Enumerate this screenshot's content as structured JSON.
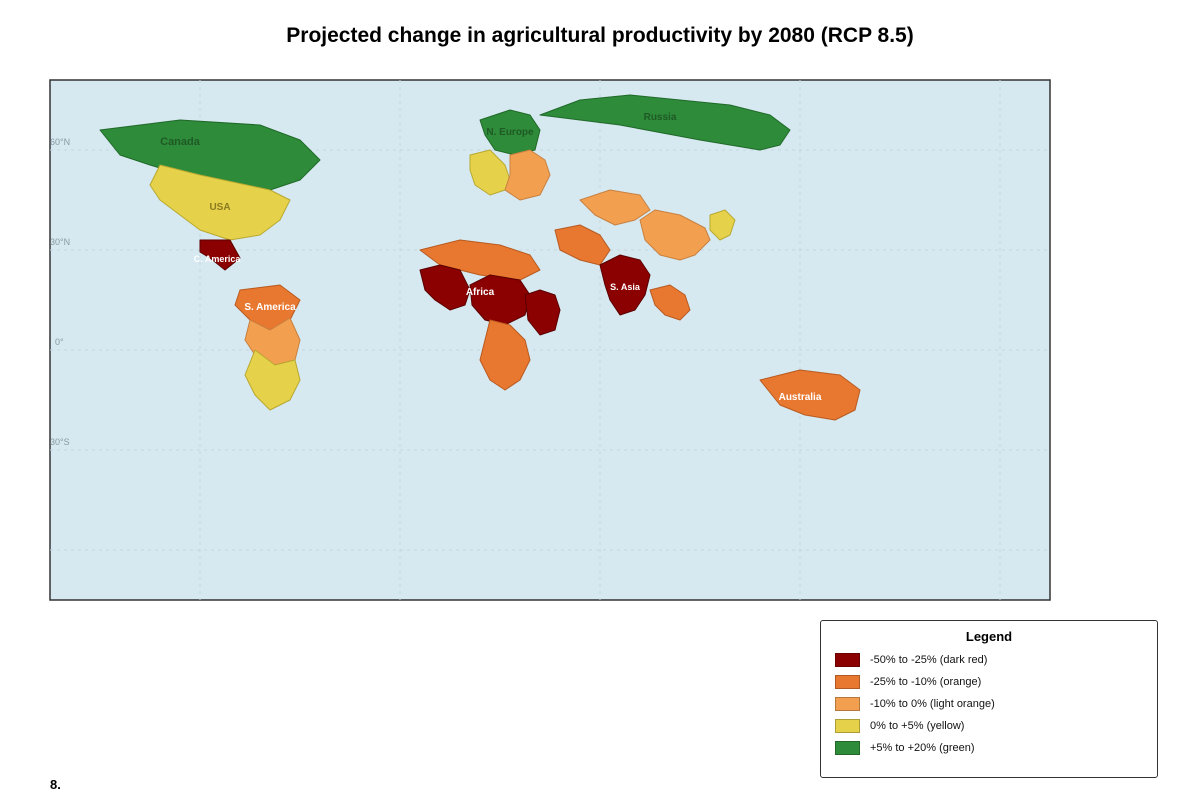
{
  "title": "Projected change in agricultural productivity by 2080 (RCP 8.5)",
  "figure_number": "8.",
  "map": {
    "background_color": "#d6e8f0",
    "lat_labels": [
      "60°N",
      "30°N",
      "0°",
      "30°S"
    ],
    "regions": [
      {
        "key": "canada",
        "label": "Canada",
        "category": "green"
      },
      {
        "key": "russia",
        "label": "Russia",
        "category": "green"
      },
      {
        "key": "n_europe",
        "label": "N. Europe",
        "category": "green"
      },
      {
        "key": "usa",
        "label": "USA",
        "category": "yellow"
      },
      {
        "key": "c_america",
        "label": "C. America",
        "category": "dark_red"
      },
      {
        "key": "s_america",
        "label": "S. America",
        "category": "orange"
      },
      {
        "key": "africa",
        "label": "Africa",
        "category": "dark_red"
      },
      {
        "key": "s_asia",
        "label": "S. Asia",
        "category": "dark_red"
      },
      {
        "key": "australia",
        "label": "Australia",
        "category": "orange"
      }
    ]
  },
  "legend": {
    "title": "Legend",
    "items": [
      {
        "label": "-50% to -25% (dark red)",
        "color": "#8b0000"
      },
      {
        "label": "-25% to -10% (orange)",
        "color": "#e87830"
      },
      {
        "label": "-10% to 0% (light orange)",
        "color": "#f2a050"
      },
      {
        "label": "0% to +5% (yellow)",
        "color": "#e6d24a"
      },
      {
        "label": "+5% to +20% (green)",
        "color": "#2e8b3a"
      }
    ]
  },
  "colors": {
    "dark_red": "#8b0000",
    "orange": "#e87830",
    "light_orange": "#f2a050",
    "yellow": "#e6d24a",
    "green": "#2e8b3a"
  }
}
